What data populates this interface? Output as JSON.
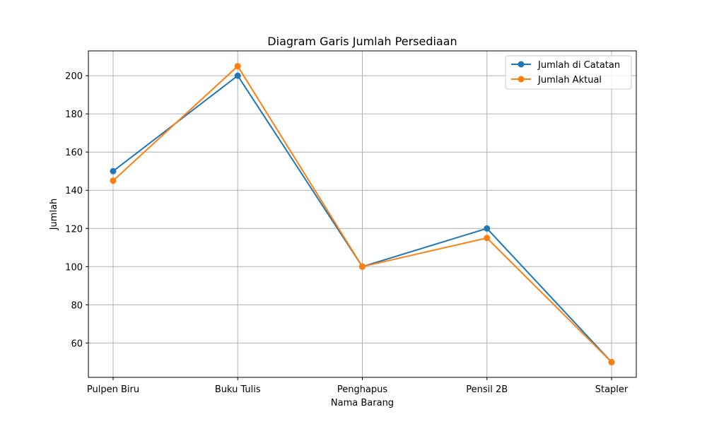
{
  "chart_data": {
    "type": "line",
    "title": "Diagram Garis Jumlah Persediaan",
    "xlabel": "Nama Barang",
    "ylabel": "Jumlah",
    "categories": [
      "Pulpen Biru",
      "Buku Tulis",
      "Penghapus",
      "Pensil 2B",
      "Stapler"
    ],
    "series": [
      {
        "name": "Jumlah di Catatan",
        "values": [
          150,
          200,
          100,
          120,
          50
        ],
        "color": "#1f77b4"
      },
      {
        "name": "Jumlah Aktual",
        "values": [
          145,
          205,
          100,
          115,
          50
        ],
        "color": "#ff7f0e"
      }
    ],
    "ylim": [
      42,
      213
    ],
    "yticks": [
      60,
      80,
      100,
      120,
      140,
      160,
      180,
      200
    ],
    "grid": true,
    "legend": "top-right",
    "markers": "circle"
  }
}
